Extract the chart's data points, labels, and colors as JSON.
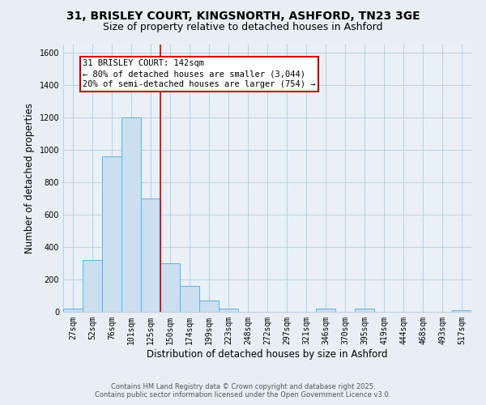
{
  "title": "31, BRISLEY COURT, KINGSNORTH, ASHFORD, TN23 3GE",
  "subtitle": "Size of property relative to detached houses in Ashford",
  "xlabel": "Distribution of detached houses by size in Ashford",
  "ylabel": "Number of detached properties",
  "bin_labels": [
    "27sqm",
    "52sqm",
    "76sqm",
    "101sqm",
    "125sqm",
    "150sqm",
    "174sqm",
    "199sqm",
    "223sqm",
    "248sqm",
    "272sqm",
    "297sqm",
    "321sqm",
    "346sqm",
    "370sqm",
    "395sqm",
    "419sqm",
    "444sqm",
    "468sqm",
    "493sqm",
    "517sqm"
  ],
  "bar_values": [
    20,
    322,
    960,
    1200,
    700,
    300,
    160,
    70,
    20,
    0,
    0,
    0,
    0,
    20,
    0,
    20,
    0,
    0,
    0,
    0,
    10
  ],
  "bar_color": "#ccdff0",
  "bar_edge_color": "#6aaed6",
  "vline_x_index": 4.5,
  "vline_color": "#cc0000",
  "annotation_line0": "31 BRISLEY COURT: 142sqm",
  "annotation_line1": "← 80% of detached houses are smaller (3,044)",
  "annotation_line2": "20% of semi-detached houses are larger (754) →",
  "annotation_bg": "#ffffff",
  "annotation_border": "#cc0000",
  "ylim": [
    0,
    1650
  ],
  "yticks": [
    0,
    200,
    400,
    600,
    800,
    1000,
    1200,
    1400,
    1600
  ],
  "footer_line1": "Contains HM Land Registry data © Crown copyright and database right 2025.",
  "footer_line2": "Contains public sector information licensed under the Open Government Licence v3.0.",
  "background_color": "#e8eef4",
  "plot_bg_color": "#eaf0f6",
  "grid_color": "#b8cfe0",
  "title_fontsize": 10,
  "subtitle_fontsize": 9,
  "axis_label_fontsize": 8.5,
  "tick_fontsize": 7,
  "annotation_fontsize": 7.5,
  "footer_fontsize": 6
}
